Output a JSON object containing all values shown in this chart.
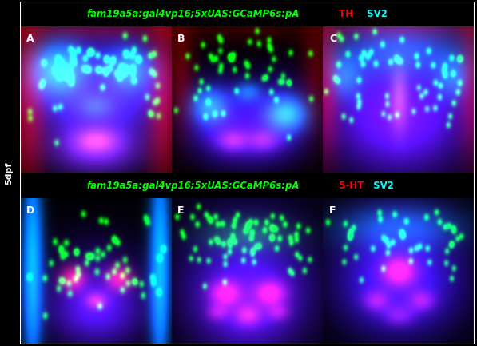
{
  "title1": "fam19a5a:gal4vp16;5xUAS:GCaMP6s:pA",
  "label_TH": " TH",
  "label_SV2_1": " SV2",
  "title2": "fam19a5a:gal4vp16;5xUAS:GCaMP6s:pA",
  "label_5HT": " 5-HT",
  "label_SV2_2": " SV2",
  "panel_labels": [
    "A",
    "B",
    "C",
    "D",
    "E",
    "F"
  ],
  "side_label": "5dpf",
  "title_color_green": "#00ff00",
  "title_color_red": "#ff0000",
  "title_color_cyan": "#00ffff",
  "label_fontsize": 8.5,
  "panel_label_fontsize": 9,
  "side_fontsize": 8
}
